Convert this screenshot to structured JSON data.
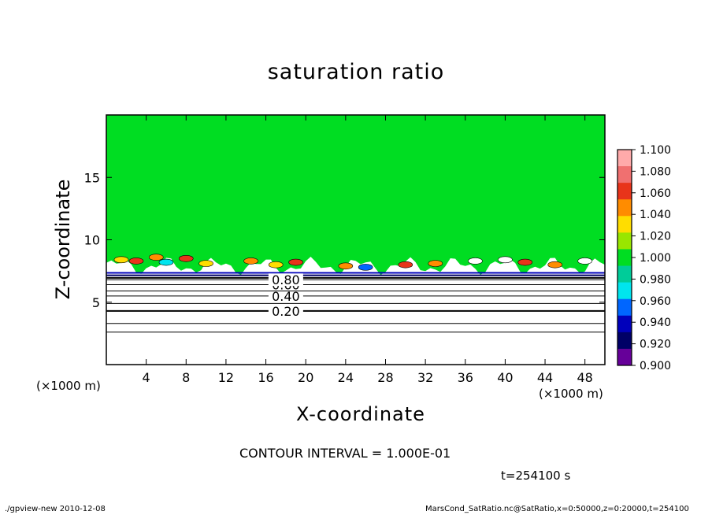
{
  "title": "saturation ratio",
  "xunit_left": "(×1000 m)",
  "xunit_right": "(×1000 m)",
  "contour_interval": "CONTOUR INTERVAL = 1.000E-01",
  "time": "t=254100 s",
  "footer_left": "./gpview-new   2010-12-08",
  "footer_right": "MarsCond_SatRatio.nc@SatRatio,x=0:50000,z=0:20000,t=254100",
  "chart_data": {
    "type": "heatmap",
    "title": "saturation ratio",
    "xlabel": "X-coordinate",
    "ylabel": "Z-coordinate",
    "xlim": [
      0,
      50
    ],
    "ylim": [
      0,
      20
    ],
    "x_ticks": [
      4,
      8,
      12,
      16,
      20,
      24,
      28,
      32,
      36,
      40,
      44,
      48
    ],
    "y_ticks": [
      5,
      10,
      15
    ],
    "x_scale_note": "(×1000 m)",
    "contour_lines": [
      {
        "value": 0.2,
        "label": "0.20",
        "z": 4.3
      },
      {
        "value": 0.4,
        "label": "0.40",
        "z": 5.5
      },
      {
        "value": 0.6,
        "label": "0.60",
        "z": 6.4
      },
      {
        "value": 0.8,
        "label": "0.80",
        "z": 6.8
      }
    ],
    "saturated_layer": {
      "value": 1.0,
      "z_base": 7.5,
      "z_top": 20
    },
    "colorbar": {
      "levels": [
        "1.100",
        "1.080",
        "1.060",
        "1.040",
        "1.020",
        "1.000",
        "0.980",
        "0.960",
        "0.940",
        "0.920",
        "0.900"
      ],
      "colors": [
        "#ffaaaa",
        "#f07070",
        "#e8341a",
        "#ff8c00",
        "#ffdd00",
        "#99e600",
        "#00dd22",
        "#00cc99",
        "#00e5ee",
        "#0066ff",
        "#0000bb",
        "#000066",
        "#660099"
      ]
    }
  }
}
